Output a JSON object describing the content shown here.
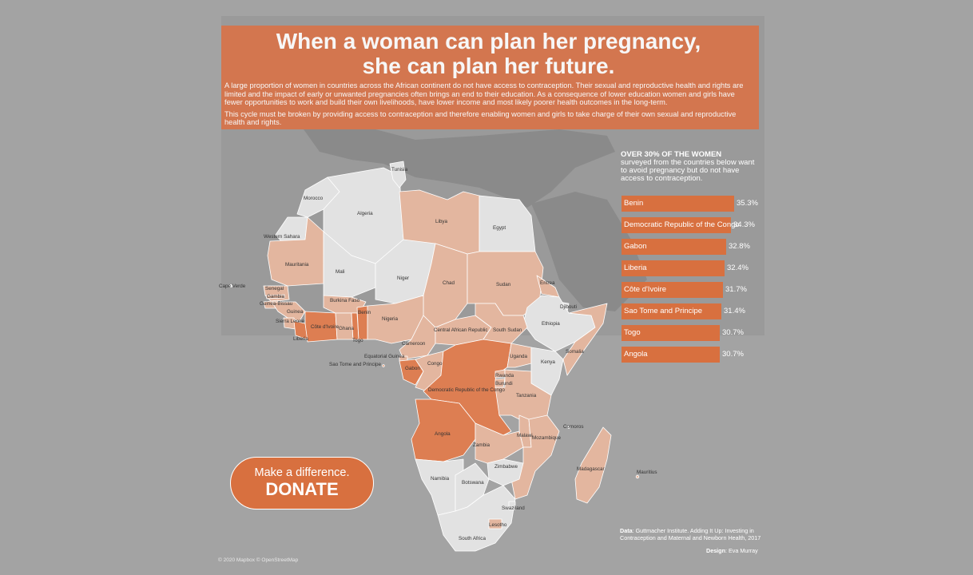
{
  "header": {
    "title_line1": "When a woman can plan her pregnancy,",
    "title_line2": "she can plan her future.",
    "paragraph1": "A large proportion of women in countries across the African continent do not have access to contraception. Their sexual and reproductive health and rights are limited and the impact of early or unwanted pregnancies often brings an end to their education. As a consequence of lower education women and girls have fewer opportunities to work and build their own livelihoods, have lower income and most likely poorer health outcomes in the long-term.",
    "paragraph2": "This cycle must be broken by providing access to contraception and therefore enabling women and girls to take charge of their own sexual and reproductive health and rights."
  },
  "stat": {
    "headline": "OVER 30% OF THE WOMEN",
    "subtext": "surveyed from the countries below want to avoid pregnancy but do not have access to contraception."
  },
  "chart_data": {
    "type": "bar",
    "categories": [
      "Benin",
      "Democratic Republic of the Congo",
      "Gabon",
      "Liberia",
      "Côte d'Ivoire",
      "Sao Tome and Principe",
      "Togo",
      "Angola"
    ],
    "values": [
      35.3,
      34.3,
      32.8,
      32.4,
      31.7,
      31.4,
      30.7,
      30.7
    ],
    "value_labels": [
      "35.3%",
      "34.3%",
      "32.8%",
      "32.4%",
      "31.7%",
      "31.4%",
      "30.7%",
      "30.7%"
    ],
    "orientation": "horizontal",
    "bar_color": "#d8703f",
    "unit": "%"
  },
  "map": {
    "country_labels": [
      "Tunisia",
      "Morocco",
      "Algeria",
      "Libya",
      "Egypt",
      "Western Sahara",
      "Mauritania",
      "Mali",
      "Niger",
      "Chad",
      "Sudan",
      "Eritrea",
      "Djibouti",
      "Cape Verde",
      "Senegal",
      "Gambia",
      "Guinea-Bissau",
      "Guinea",
      "Burkina Faso",
      "Benin",
      "Sierra Leone",
      "Côte d'Ivoire",
      "Ghana",
      "Togo",
      "Nigeria",
      "Liberia",
      "Central African Republic",
      "South Sudan",
      "Ethiopia",
      "Cameroon",
      "Equatorial Guinea",
      "Sao Tome and Principe",
      "Gabon",
      "Congo",
      "Uganda",
      "Kenya",
      "Somalia",
      "Rwanda",
      "Burundi",
      "Democratic Republic of the Congo",
      "Tanzania",
      "Comoros",
      "Angola",
      "Malawi",
      "Mozambique",
      "Zambia",
      "Madagascar",
      "Mauritius",
      "Zimbabwe",
      "Namibia",
      "Botswana",
      "Swaziland",
      "Lesotho",
      "South Africa"
    ],
    "colors": {
      "background": "#a3a3a3",
      "land": "#8e8e8e",
      "no_data": "#e2e2e2",
      "light": "#e3b69f",
      "medium": "#e59a77",
      "dark": "#dd7e52"
    }
  },
  "donate": {
    "line1": "Make a difference.",
    "line2": "DONATE"
  },
  "credits": {
    "data_label": "Data",
    "data_text": ": Guttmacher Institute. Adding It Up: Investing in Contraception and Maternal and Newborn Health, 2017",
    "design_label": "Design",
    "design_text": ": Eva Murray",
    "attribution": "© 2020 Mapbox © OpenStreetMap"
  }
}
